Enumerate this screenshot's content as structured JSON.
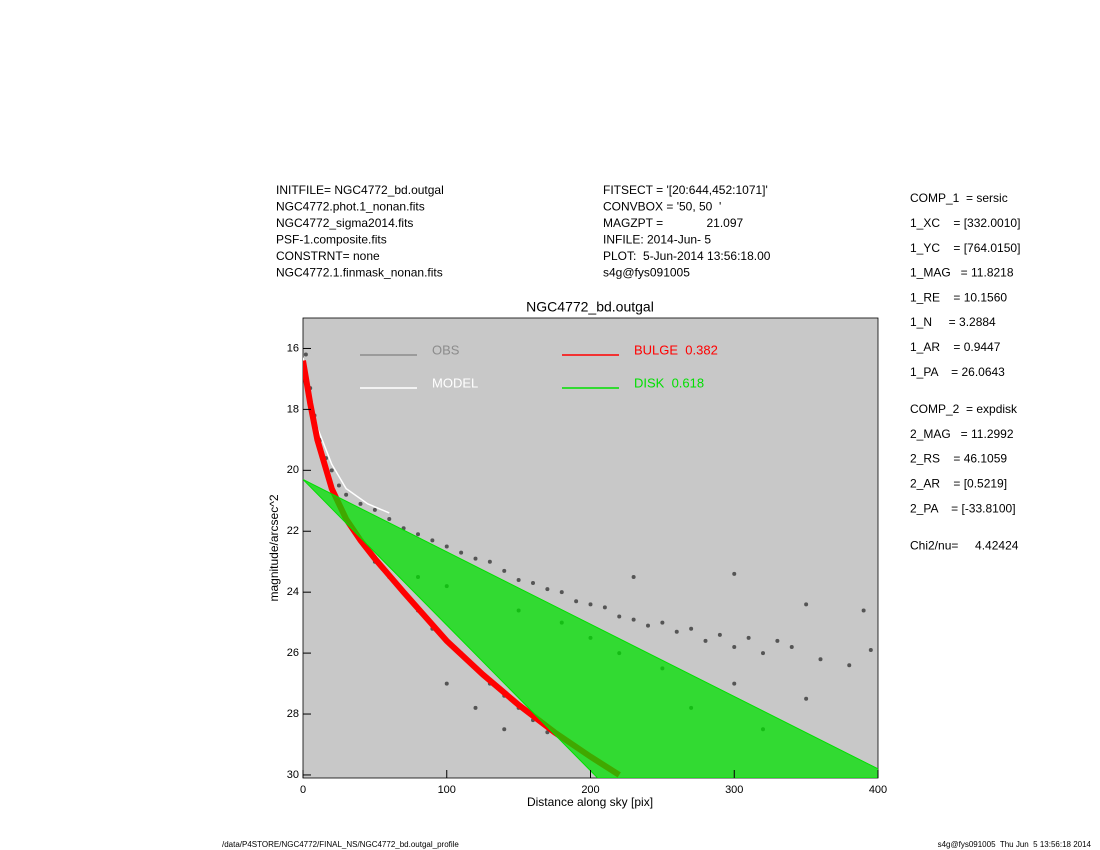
{
  "header": {
    "left": [
      "INITFILE= NGC4772_bd.outgal",
      "NGC4772.phot.1_nonan.fits",
      "NGC4772_sigma2014.fits",
      "PSF-1.composite.fits",
      "CONSTRNT= none",
      "NGC4772.1.finmask_nonan.fits"
    ],
    "middle": [
      "FITSECT = '[20:644,452:1071]'",
      "CONVBOX = '50, 50  '",
      "MAGZPT =             21.097",
      "INFILE: 2014-Jun- 5",
      "PLOT:  5-Jun-2014 13:56:18.00",
      "s4g@fys091005"
    ]
  },
  "params": [
    [
      "COMP_1  = sersic",
      "1_XC    = [332.0010]",
      "1_YC    = [764.0150]",
      "1_MAG   = 11.8218",
      "1_RE    = 10.1560",
      "1_N     = 3.2884",
      "1_AR    = 0.9447",
      "1_PA    = 26.0643"
    ],
    [
      "COMP_2  = expdisk",
      "2_MAG   = 11.2992",
      "2_RS    = 46.1059",
      "2_AR    = [0.5219]",
      "2_PA    = [-33.8100]"
    ],
    [
      "Chi2/nu=     4.42424"
    ]
  ],
  "footer": {
    "left": "/data/P4STORE/NGC4772/FINAL_NS/NGC4772_bd.outgal_profile",
    "right": "s4g@fys091005  Thu Jun  5 13:56:18 2014"
  },
  "chart_data": {
    "type": "scatter",
    "title": "NGC4772_bd.outgal",
    "x_label": "Distance along sky [pix]",
    "y_label": "magnitude/arcsec^2",
    "xlim": [
      0,
      400
    ],
    "ylim": [
      30.1,
      15
    ],
    "xticks": [
      0,
      100,
      200,
      300,
      400
    ],
    "yticks": [
      16,
      18,
      20,
      22,
      24,
      26,
      28,
      30
    ],
    "background": "#c8c8c8",
    "series": [
      {
        "name": "OBS",
        "color": "#555555",
        "legend_color": "#8c8c8c",
        "style": "points",
        "x": [
          2,
          5,
          8,
          12,
          16,
          20,
          25,
          30,
          40,
          50,
          60,
          70,
          80,
          90,
          100,
          110,
          120,
          130,
          140,
          150,
          160,
          170,
          180,
          190,
          200,
          210,
          220,
          230,
          240,
          250,
          260,
          270,
          280,
          290,
          300,
          310,
          320,
          330,
          340,
          360,
          380,
          395,
          50,
          60,
          70,
          80,
          90,
          100,
          110,
          120,
          130,
          140,
          150,
          160,
          170,
          100,
          120,
          140,
          100,
          150,
          200,
          250,
          300,
          350,
          80,
          180,
          220,
          270,
          320,
          230,
          300,
          350,
          390
        ],
        "values": [
          16.2,
          17.3,
          18.2,
          19.0,
          19.6,
          20.0,
          20.5,
          20.8,
          21.1,
          21.3,
          21.6,
          21.9,
          22.1,
          22.3,
          22.5,
          22.7,
          22.9,
          23.0,
          23.3,
          23.6,
          23.7,
          23.9,
          24.0,
          24.3,
          24.4,
          24.5,
          24.8,
          24.9,
          25.1,
          25.0,
          25.3,
          25.2,
          25.6,
          25.4,
          25.8,
          25.5,
          26.0,
          25.6,
          25.8,
          26.2,
          26.4,
          25.9,
          23.0,
          23.5,
          24.0,
          24.6,
          25.2,
          25.6,
          26.0,
          26.5,
          27.0,
          27.4,
          27.8,
          28.2,
          28.6,
          27.0,
          27.8,
          28.5,
          23.8,
          24.6,
          25.5,
          26.5,
          27.0,
          27.5,
          23.5,
          25.0,
          26.0,
          27.8,
          28.5,
          23.5,
          23.4,
          24.4,
          24.6
        ]
      },
      {
        "name": "MODEL",
        "color": "#ffffff",
        "style": "line",
        "x": [
          0,
          5,
          10,
          20,
          30,
          45,
          60
        ],
        "values": [
          16.3,
          17.6,
          18.6,
          19.8,
          20.6,
          21.1,
          21.4
        ]
      },
      {
        "name": "BULGE  0.382",
        "color": "#ff0000",
        "style": "line",
        "width": 6,
        "x": [
          0,
          5,
          10,
          20,
          30,
          40,
          50,
          70,
          100,
          125,
          150,
          175,
          200,
          220
        ],
        "values": [
          16.4,
          17.8,
          19.0,
          20.6,
          21.6,
          22.3,
          22.9,
          24.0,
          25.6,
          26.7,
          27.7,
          28.6,
          29.4,
          30.0
        ]
      },
      {
        "name": "DISK  0.618",
        "color": "#00e000",
        "style": "band",
        "x": [
          0,
          400
        ],
        "values": [
          20.3,
          29.8
        ],
        "x_low": [
          0,
          205
        ],
        "values_low": [
          20.3,
          30.1
        ]
      }
    ]
  }
}
